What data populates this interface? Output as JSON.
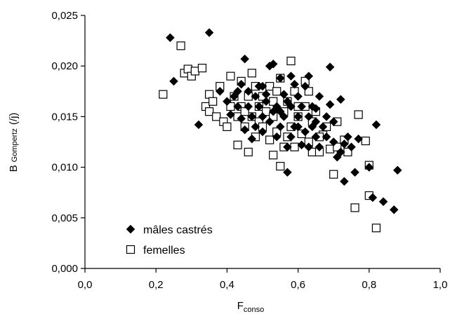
{
  "chart_data": {
    "type": "scatter",
    "xlabel": {
      "main": "F",
      "sub": "conso"
    },
    "ylabel": {
      "main": "B",
      "sub": "Gompertz",
      "unit": "(/j)"
    },
    "xlim": [
      0.0,
      1.0
    ],
    "ylim": [
      0.0,
      0.025
    ],
    "x_ticks": [
      "0,0",
      "0,2",
      "0,4",
      "0,6",
      "0,8",
      "1,0"
    ],
    "y_ticks": [
      "0,000",
      "0,005",
      "0,010",
      "0,015",
      "0,020",
      "0,025"
    ],
    "grid": false,
    "legend_position": "bottom-left",
    "series": [
      {
        "name": "mâles castrés",
        "marker": "diamond",
        "color": "#000000",
        "points": [
          [
            0.24,
            0.0228
          ],
          [
            0.25,
            0.0185
          ],
          [
            0.35,
            0.0233
          ],
          [
            0.32,
            0.0142
          ],
          [
            0.38,
            0.0175
          ],
          [
            0.4,
            0.0165
          ],
          [
            0.41,
            0.0152
          ],
          [
            0.42,
            0.017
          ],
          [
            0.43,
            0.016
          ],
          [
            0.44,
            0.0182
          ],
          [
            0.44,
            0.0148
          ],
          [
            0.45,
            0.0137
          ],
          [
            0.45,
            0.0207
          ],
          [
            0.46,
            0.0175
          ],
          [
            0.46,
            0.016
          ],
          [
            0.47,
            0.015
          ],
          [
            0.47,
            0.0128
          ],
          [
            0.48,
            0.017
          ],
          [
            0.48,
            0.014
          ],
          [
            0.49,
            0.018
          ],
          [
            0.49,
            0.016
          ],
          [
            0.5,
            0.015
          ],
          [
            0.5,
            0.0135
          ],
          [
            0.51,
            0.0165
          ],
          [
            0.51,
            0.0172
          ],
          [
            0.52,
            0.02
          ],
          [
            0.52,
            0.0145
          ],
          [
            0.53,
            0.0202
          ],
          [
            0.53,
            0.0155
          ],
          [
            0.54,
            0.016
          ],
          [
            0.54,
            0.013
          ],
          [
            0.55,
            0.0188
          ],
          [
            0.55,
            0.014
          ],
          [
            0.56,
            0.015
          ],
          [
            0.56,
            0.0172
          ],
          [
            0.57,
            0.0095
          ],
          [
            0.57,
            0.012
          ],
          [
            0.58,
            0.016
          ],
          [
            0.58,
            0.019
          ],
          [
            0.58,
            0.013
          ],
          [
            0.59,
            0.0182
          ],
          [
            0.59,
            0.014
          ],
          [
            0.6,
            0.015
          ],
          [
            0.6,
            0.017
          ],
          [
            0.61,
            0.0122
          ],
          [
            0.61,
            0.016
          ],
          [
            0.62,
            0.018
          ],
          [
            0.62,
            0.0135
          ],
          [
            0.63,
            0.019
          ],
          [
            0.63,
            0.015
          ],
          [
            0.63,
            0.012
          ],
          [
            0.64,
            0.016
          ],
          [
            0.64,
            0.014
          ],
          [
            0.65,
            0.013
          ],
          [
            0.65,
            0.0145
          ],
          [
            0.66,
            0.017
          ],
          [
            0.66,
            0.012
          ],
          [
            0.67,
            0.014
          ],
          [
            0.68,
            0.015
          ],
          [
            0.68,
            0.013
          ],
          [
            0.69,
            0.0199
          ],
          [
            0.69,
            0.0162
          ],
          [
            0.7,
            0.0145
          ],
          [
            0.7,
            0.0125
          ],
          [
            0.71,
            0.011
          ],
          [
            0.72,
            0.0167
          ],
          [
            0.72,
            0.0115
          ],
          [
            0.73,
            0.0086
          ],
          [
            0.73,
            0.0123
          ],
          [
            0.74,
            0.013
          ],
          [
            0.75,
            0.012
          ],
          [
            0.76,
            0.0095
          ],
          [
            0.77,
            0.0128
          ],
          [
            0.8,
            0.01
          ],
          [
            0.81,
            0.007
          ],
          [
            0.82,
            0.0142
          ],
          [
            0.84,
            0.0066
          ],
          [
            0.87,
            0.0058
          ],
          [
            0.88,
            0.0097
          ],
          [
            0.5,
            0.018
          ],
          [
            0.43,
            0.0175
          ],
          [
            0.55,
            0.0155
          ],
          [
            0.6,
            0.014
          ],
          [
            0.65,
            0.0158
          ],
          [
            0.57,
            0.0165
          ]
        ]
      },
      {
        "name": "femelles",
        "marker": "square-open",
        "color": "#000000",
        "points": [
          [
            0.22,
            0.0172
          ],
          [
            0.27,
            0.022
          ],
          [
            0.28,
            0.0193
          ],
          [
            0.29,
            0.0197
          ],
          [
            0.3,
            0.019
          ],
          [
            0.31,
            0.0195
          ],
          [
            0.33,
            0.0198
          ],
          [
            0.34,
            0.016
          ],
          [
            0.35,
            0.0172
          ],
          [
            0.35,
            0.0155
          ],
          [
            0.36,
            0.0165
          ],
          [
            0.37,
            0.015
          ],
          [
            0.38,
            0.018
          ],
          [
            0.39,
            0.0145
          ],
          [
            0.4,
            0.014
          ],
          [
            0.41,
            0.016
          ],
          [
            0.41,
            0.019
          ],
          [
            0.42,
            0.017
          ],
          [
            0.43,
            0.015
          ],
          [
            0.43,
            0.0122
          ],
          [
            0.44,
            0.0185
          ],
          [
            0.44,
            0.016
          ],
          [
            0.45,
            0.014
          ],
          [
            0.46,
            0.0115
          ],
          [
            0.46,
            0.017
          ],
          [
            0.47,
            0.0193
          ],
          [
            0.47,
            0.015
          ],
          [
            0.48,
            0.018
          ],
          [
            0.48,
            0.013
          ],
          [
            0.49,
            0.016
          ],
          [
            0.49,
            0.0145
          ],
          [
            0.5,
            0.017
          ],
          [
            0.5,
            0.014
          ],
          [
            0.51,
            0.0155
          ],
          [
            0.52,
            0.018
          ],
          [
            0.52,
            0.0127
          ],
          [
            0.53,
            0.0112
          ],
          [
            0.53,
            0.015
          ],
          [
            0.54,
            0.0135
          ],
          [
            0.55,
            0.0188
          ],
          [
            0.55,
            0.0101
          ],
          [
            0.56,
            0.0155
          ],
          [
            0.56,
            0.012
          ],
          [
            0.57,
            0.013
          ],
          [
            0.57,
            0.0165
          ],
          [
            0.58,
            0.0205
          ],
          [
            0.58,
            0.014
          ],
          [
            0.59,
            0.0175
          ],
          [
            0.59,
            0.012
          ],
          [
            0.6,
            0.015
          ],
          [
            0.61,
            0.0133
          ],
          [
            0.62,
            0.0185
          ],
          [
            0.62,
            0.016
          ],
          [
            0.63,
            0.0175
          ],
          [
            0.63,
            0.0125
          ],
          [
            0.64,
            0.0145
          ],
          [
            0.64,
            0.0115
          ],
          [
            0.65,
            0.0155
          ],
          [
            0.66,
            0.0115
          ],
          [
            0.67,
            0.0132
          ],
          [
            0.68,
            0.014
          ],
          [
            0.69,
            0.0118
          ],
          [
            0.7,
            0.0093
          ],
          [
            0.71,
            0.012
          ],
          [
            0.71,
            0.0145
          ],
          [
            0.73,
            0.0127
          ],
          [
            0.74,
            0.0115
          ],
          [
            0.76,
            0.006
          ],
          [
            0.77,
            0.0152
          ],
          [
            0.79,
            0.0126
          ],
          [
            0.8,
            0.0102
          ],
          [
            0.8,
            0.0072
          ],
          [
            0.82,
            0.004
          ],
          [
            0.45,
            0.0155
          ],
          [
            0.53,
            0.0165
          ],
          [
            0.6,
            0.016
          ],
          [
            0.66,
            0.013
          ],
          [
            0.54,
            0.0175
          ]
        ]
      }
    ]
  }
}
